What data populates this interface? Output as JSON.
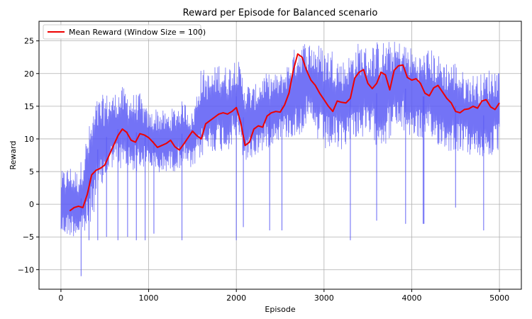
{
  "chart_data": {
    "type": "line",
    "title": "Reward per Episode for Balanced scenario",
    "xlabel": "Episode",
    "ylabel": "Reward",
    "xlim": [
      -250,
      5250
    ],
    "ylim": [
      -13,
      28
    ],
    "xticks": [
      0,
      1000,
      2000,
      3000,
      4000,
      5000
    ],
    "yticks": [
      -10,
      -5,
      0,
      5,
      10,
      15,
      20,
      25
    ],
    "grid": true,
    "legend": "top-left",
    "series": [
      {
        "name": "",
        "role": "raw reward (noisy band)",
        "color": "#5a5af5",
        "band_x": [
          0,
          100,
          200,
          300,
          400,
          500,
          600,
          700,
          800,
          900,
          1000,
          1100,
          1200,
          1300,
          1400,
          1500,
          1600,
          1700,
          1800,
          1900,
          2000,
          2100,
          2200,
          2300,
          2400,
          2500,
          2600,
          2700,
          2800,
          2900,
          3000,
          3100,
          3200,
          3300,
          3400,
          3500,
          3600,
          3700,
          3800,
          3900,
          4000,
          4100,
          4200,
          4300,
          4400,
          4500,
          4600,
          4700,
          4800,
          4900,
          5000
        ],
        "band_low": [
          -5,
          -5,
          -5,
          -5,
          0,
          3,
          6,
          5,
          5,
          5,
          6,
          4,
          5,
          5,
          6,
          5,
          7,
          8,
          8,
          8,
          10,
          6,
          7,
          8,
          9,
          10,
          10,
          10,
          12,
          10,
          8,
          8,
          8,
          10,
          10,
          10,
          9,
          9,
          11,
          11,
          10,
          10,
          9,
          9,
          8,
          8,
          8,
          7,
          7,
          7,
          8
        ],
        "band_high": [
          5,
          6,
          5,
          11,
          16,
          17,
          17,
          18,
          17,
          17,
          14,
          15,
          14,
          15,
          16,
          14,
          21,
          20,
          22,
          21,
          23,
          19,
          18,
          20,
          20,
          20,
          22,
          25,
          25,
          25,
          24,
          24,
          22,
          23,
          25,
          24,
          25,
          25,
          25,
          25,
          24,
          23,
          24,
          23,
          22,
          22,
          20,
          20,
          20,
          21,
          21
        ],
        "spikes": [
          {
            "x": 230,
            "y": -11
          },
          {
            "x": 320,
            "y": -5.5
          },
          {
            "x": 420,
            "y": -5.5
          },
          {
            "x": 520,
            "y": -5
          },
          {
            "x": 650,
            "y": -5.5
          },
          {
            "x": 760,
            "y": -5
          },
          {
            "x": 860,
            "y": -5.5
          },
          {
            "x": 960,
            "y": -5.5
          },
          {
            "x": 1060,
            "y": -4.5
          },
          {
            "x": 1380,
            "y": -5.5
          },
          {
            "x": 2000,
            "y": -5.5
          },
          {
            "x": 2080,
            "y": -3.5
          },
          {
            "x": 2380,
            "y": -4
          },
          {
            "x": 2520,
            "y": -4
          },
          {
            "x": 3300,
            "y": -5.5
          },
          {
            "x": 3600,
            "y": -2.5
          },
          {
            "x": 3930,
            "y": -3
          },
          {
            "x": 4130,
            "y": -3
          },
          {
            "x": 4140,
            "y": -3
          },
          {
            "x": 4500,
            "y": -0.5
          },
          {
            "x": 4820,
            "y": -4
          }
        ]
      },
      {
        "name": "Mean Reward (Window Size = 100)",
        "role": "moving average",
        "color": "#ee0000",
        "x": [
          100,
          150,
          200,
          250,
          300,
          350,
          400,
          450,
          500,
          550,
          600,
          650,
          700,
          750,
          800,
          850,
          900,
          950,
          1000,
          1050,
          1100,
          1150,
          1200,
          1250,
          1300,
          1350,
          1400,
          1450,
          1500,
          1550,
          1600,
          1650,
          1700,
          1750,
          1800,
          1850,
          1900,
          1950,
          2000,
          2050,
          2100,
          2150,
          2200,
          2250,
          2300,
          2350,
          2400,
          2450,
          2500,
          2550,
          2600,
          2650,
          2700,
          2750,
          2800,
          2850,
          2900,
          2950,
          3000,
          3050,
          3100,
          3150,
          3200,
          3250,
          3300,
          3350,
          3400,
          3450,
          3500,
          3550,
          3600,
          3650,
          3700,
          3750,
          3800,
          3850,
          3900,
          3950,
          4000,
          4050,
          4100,
          4150,
          4200,
          4250,
          4300,
          4350,
          4400,
          4450,
          4500,
          4550,
          4600,
          4650,
          4700,
          4750,
          4800,
          4850,
          4900,
          4950,
          5000
        ],
        "y": [
          -1,
          -0.5,
          -0.3,
          -0.5,
          1.5,
          4.5,
          5.2,
          5.5,
          6,
          7.5,
          9,
          10.5,
          11.5,
          11,
          9.8,
          9.5,
          10.8,
          10.6,
          10.2,
          9.5,
          8.7,
          9,
          9.3,
          9.8,
          8.8,
          8.3,
          9.2,
          10.2,
          11.2,
          10.5,
          10,
          12.3,
          12.8,
          13.3,
          13.8,
          14,
          13.8,
          14.2,
          14.8,
          12.5,
          9,
          9.5,
          11.5,
          12,
          11.8,
          13.5,
          14,
          14.2,
          14.1,
          15.2,
          17,
          20.5,
          23,
          22.5,
          20.5,
          19,
          18.2,
          17,
          16,
          15,
          14.2,
          15.8,
          15.6,
          15.5,
          16.2,
          19.3,
          20.2,
          20.6,
          18.5,
          17.7,
          18.5,
          20.2,
          19.8,
          17.5,
          20.5,
          21.2,
          21.3,
          19.4,
          19,
          19.2,
          18.5,
          17,
          16.6,
          17.8,
          18.2,
          17.2,
          16.2,
          15.5,
          14.2,
          14,
          14.5,
          14.6,
          15,
          14.7,
          15.8,
          16,
          14.9,
          14.5,
          15.5
        ]
      }
    ]
  }
}
